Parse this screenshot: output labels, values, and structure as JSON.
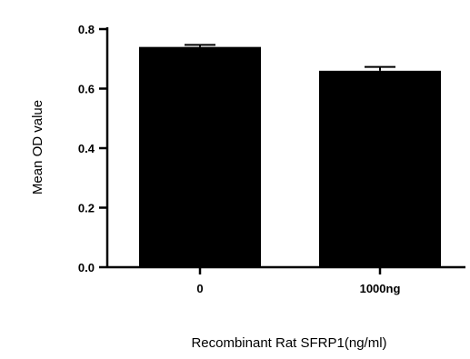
{
  "chart_data": {
    "type": "bar",
    "title": "",
    "xlabel": "Recombinant Rat SFRP1(ng/ml)",
    "ylabel": "Mean OD value",
    "categories": [
      "0",
      "1000ng"
    ],
    "values": [
      0.74,
      0.66
    ],
    "errors": [
      0.007,
      0.013
    ],
    "ylim": [
      0.0,
      0.8
    ],
    "yticks": [
      0.0,
      0.2,
      0.4,
      0.6,
      0.8
    ],
    "ytick_labels": [
      "0.0",
      "0.2",
      "0.4",
      "0.6",
      "0.8"
    ],
    "grid": false,
    "legend": "none",
    "bar_color": "#000000"
  }
}
